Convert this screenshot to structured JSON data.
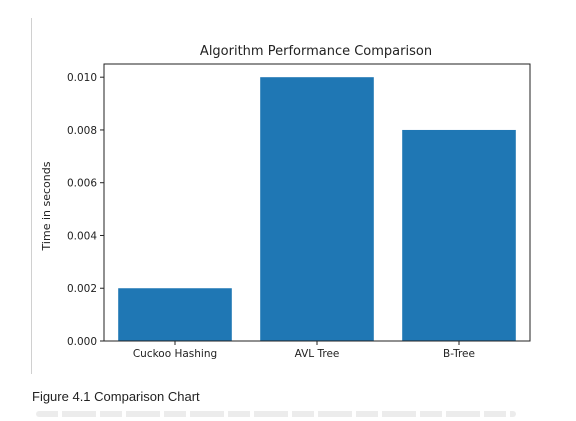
{
  "chart_data": {
    "type": "bar",
    "title": "Algorithm Performance Comparison",
    "ylabel": "Time in seconds",
    "xlabel": "",
    "categories": [
      "Cuckoo Hashing",
      "AVL Tree",
      "B-Tree"
    ],
    "values": [
      0.002,
      0.01,
      0.008
    ],
    "ylim": [
      0,
      0.0105
    ],
    "yticks": [
      "0.000",
      "0.002",
      "0.004",
      "0.006",
      "0.008",
      "0.010"
    ],
    "bar_color": "#1f77b4",
    "grid": false,
    "legend": "none"
  },
  "caption": "Figure 4.1 Comparison Chart"
}
